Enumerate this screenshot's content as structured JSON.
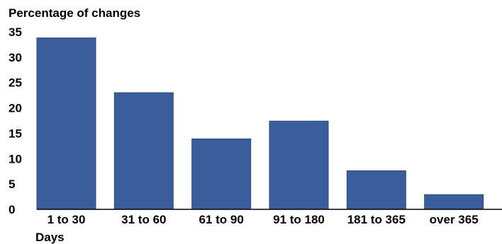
{
  "chart_data": {
    "type": "bar",
    "ylabel": "Percentage of changes",
    "xlabel": "Days",
    "categories": [
      "1 to 30",
      "31 to 60",
      "61 to 90",
      "91 to 180",
      "181 to 365",
      "over 365"
    ],
    "values": [
      33.8,
      23.0,
      13.9,
      17.4,
      7.6,
      2.9
    ],
    "yticks": [
      0,
      5,
      10,
      15,
      20,
      25,
      30,
      35
    ],
    "ylim": [
      0,
      35
    ],
    "grid": false,
    "colors": {
      "bar": "#3a5e9c",
      "axis": "#000000"
    }
  }
}
